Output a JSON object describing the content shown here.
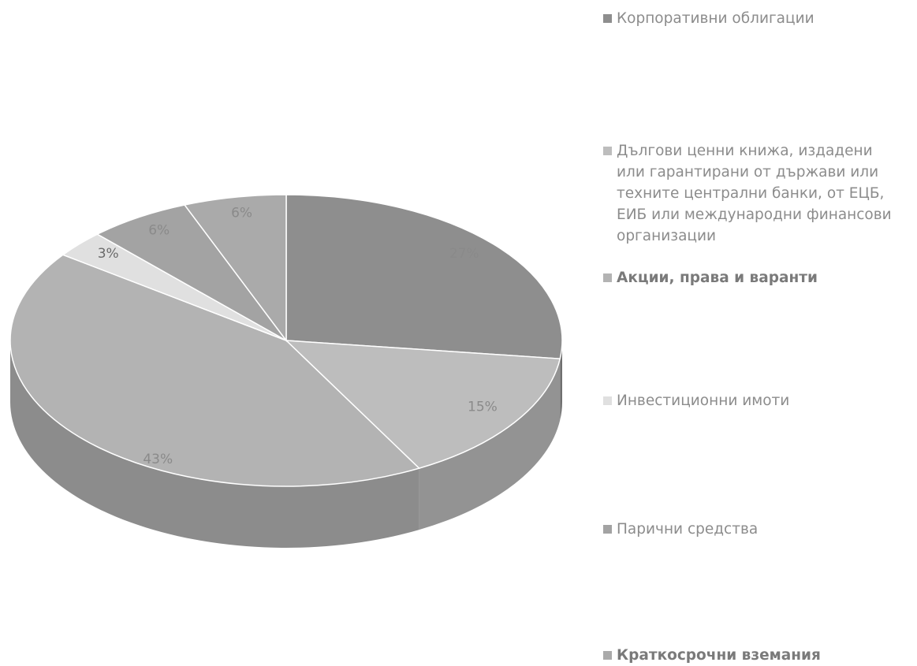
{
  "chart_data": {
    "type": "pie",
    "categories": [
      "Корпоративни облигации",
      "Дългови ценни книжа, издадени или гарантирани от държави или техните централни банки, от ЕЦБ, ЕИБ или международни финансови организации",
      "Акции, права и варанти",
      "Инвестиционни имоти",
      "Парични средства",
      "Краткосрочни вземания"
    ],
    "values": [
      27,
      15,
      43,
      3,
      6,
      6
    ],
    "data_labels": [
      "27%",
      "15%",
      "43%",
      "3%",
      "6%",
      "6%"
    ],
    "legend": "right"
  },
  "colors": [
    "#8e8e8e",
    "#bdbdbd",
    "#b3b3b3",
    "#e0e0e0",
    "#a3a3a3",
    "#aaaaaa"
  ]
}
